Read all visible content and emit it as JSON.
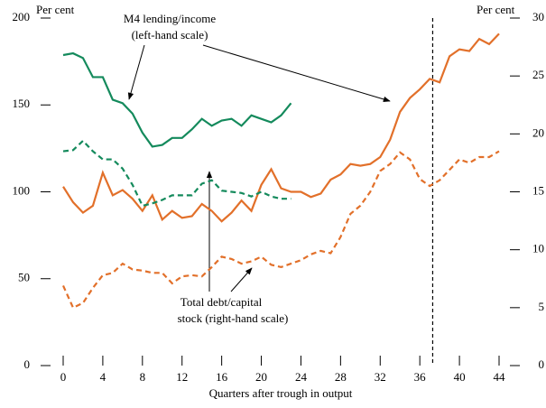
{
  "chart_data": {
    "type": "line",
    "xlabel": "Quarters after trough in output",
    "ylabel": "Per cent",
    "y2label": "Per cent",
    "annotations": [
      {
        "lines": [
          "M4 lending/income",
          "(left-hand scale)"
        ]
      },
      {
        "lines": [
          "Total debt/capital",
          "stock (right-hand scale)"
        ]
      }
    ],
    "xlim": [
      0,
      44
    ],
    "xticks": [
      0,
      4,
      8,
      12,
      16,
      20,
      24,
      28,
      32,
      36,
      40,
      44
    ],
    "ylim": [
      0,
      200
    ],
    "yticks": [
      0,
      50,
      100,
      150,
      200
    ],
    "y2lim": [
      0,
      30
    ],
    "y2ticks": [
      0,
      5,
      10,
      15,
      20,
      25,
      30
    ],
    "vline": 37.3,
    "series": [
      {
        "color": "#148a5c",
        "dash": false,
        "axis": "y",
        "x": [
          0,
          1,
          2,
          3,
          4,
          5,
          6,
          7,
          8,
          9,
          10,
          11,
          12,
          13,
          14,
          15,
          16,
          17,
          18,
          19,
          20,
          21,
          22,
          23
        ],
        "values": [
          178.7,
          179.7,
          177,
          166,
          166,
          153,
          151,
          145,
          134,
          126,
          127,
          131,
          131,
          136,
          142,
          138,
          141,
          142,
          138,
          144,
          142,
          140,
          144,
          151
        ]
      },
      {
        "color": "#e2702a",
        "dash": false,
        "axis": "y",
        "x": [
          0,
          1,
          2,
          3,
          4,
          5,
          6,
          7,
          8,
          9,
          10,
          11,
          12,
          13,
          14,
          15,
          16,
          17,
          18,
          19,
          20,
          21,
          22,
          23,
          24,
          25,
          26,
          27,
          28,
          29,
          30,
          31,
          32,
          33,
          34,
          35,
          36,
          37,
          38,
          39,
          40,
          41,
          42,
          43,
          44
        ],
        "values": [
          103,
          94,
          88,
          92,
          111,
          98,
          101,
          96,
          89,
          98,
          84,
          89,
          85,
          86,
          93,
          89,
          83,
          88,
          95,
          89,
          104,
          113,
          102,
          100,
          100,
          97,
          99,
          107,
          110,
          116,
          115,
          116,
          120,
          130,
          146,
          154,
          159,
          165,
          163,
          178,
          182,
          181,
          188,
          185,
          191
        ]
      },
      {
        "color": "#148a5c",
        "dash": true,
        "axis": "y2",
        "x": [
          0,
          1,
          2,
          3,
          4,
          5,
          6,
          7,
          8,
          9,
          10,
          11,
          12,
          13,
          14,
          15,
          16,
          17,
          18,
          19,
          20,
          21,
          22,
          23
        ],
        "values": [
          18.5,
          18.6,
          19.4,
          18.5,
          17.8,
          17.8,
          17,
          15.6,
          13.8,
          14,
          14.3,
          14.7,
          14.7,
          14.7,
          15.7,
          16,
          15.1,
          15,
          14.9,
          14.6,
          15,
          14.6,
          14.4,
          14.4
        ]
      },
      {
        "color": "#e2702a",
        "dash": true,
        "axis": "y2",
        "x": [
          0,
          1,
          2,
          3,
          4,
          5,
          6,
          7,
          8,
          9,
          10,
          11,
          12,
          13,
          14,
          15,
          16,
          17,
          18,
          19,
          20,
          21,
          22,
          23,
          24,
          25,
          26,
          27,
          28,
          29,
          30,
          31,
          32,
          33,
          34,
          35,
          36,
          37,
          38,
          39,
          40,
          41,
          42,
          43,
          44
        ],
        "values": [
          6.9,
          5,
          5.4,
          6.7,
          7.8,
          8,
          8.8,
          8.3,
          8.2,
          8,
          8,
          7.1,
          7.7,
          7.8,
          7.7,
          8.5,
          9.4,
          9.2,
          8.8,
          9,
          9.4,
          8.7,
          8.5,
          8.8,
          9.1,
          9.6,
          9.9,
          9.7,
          11.1,
          13.1,
          13.8,
          15,
          16.8,
          17.4,
          18.4,
          17.8,
          16.1,
          15.5,
          16,
          16.9,
          17.8,
          17.5,
          18,
          18,
          18.5
        ]
      }
    ]
  }
}
